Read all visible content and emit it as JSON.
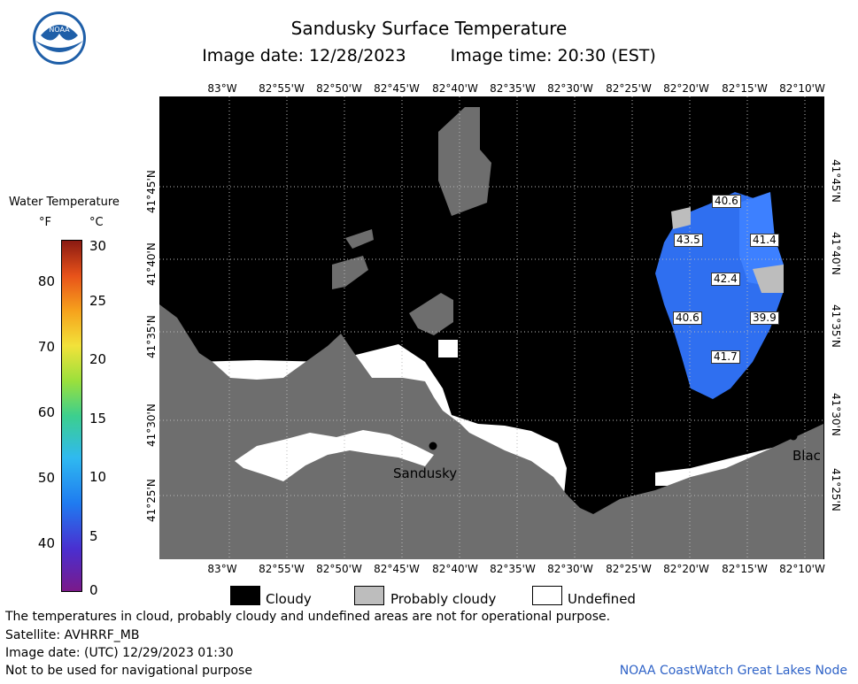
{
  "header": {
    "title": "Sandusky Surface Temperature",
    "image_date": "Image date: 12/28/2023",
    "image_time": "Image time: 20:30 (EST)"
  },
  "logo": {
    "text": "NOAA",
    "icon": "noaa-logo-icon"
  },
  "map": {
    "lon_labels": [
      "83°W",
      "82°55'W",
      "82°50'W",
      "82°45'W",
      "82°40'W",
      "82°35'W",
      "82°30'W",
      "82°25'W",
      "82°20'W",
      "82°15'W",
      "82°10'W"
    ],
    "lat_labels": [
      "41°45'N",
      "41°40'N",
      "41°35'N",
      "41°30'N",
      "41°25'N"
    ],
    "city_label": "Sandusky",
    "partial_label": "Blac",
    "temperature_labels": [
      "40.6",
      "43.5",
      "41.4",
      "42.4",
      "40.6",
      "39.9",
      "41.7"
    ],
    "colors": {
      "land": "#6e6e6e",
      "cloudy": "#000000",
      "probably_cloudy": "#bdbdbd",
      "undefined": "#ffffff",
      "water": "#2f6ff0"
    }
  },
  "legend": {
    "title": "Water Temperature",
    "unit_f": "°F",
    "unit_c": "°C",
    "f_ticks": [
      "80",
      "70",
      "60",
      "50",
      "40"
    ],
    "c_ticks": [
      "30",
      "25",
      "20",
      "15",
      "10",
      "5",
      "0"
    ]
  },
  "key": {
    "cloudy": "Cloudy",
    "probably_cloudy": "Probably cloudy",
    "undefined": "Undefined"
  },
  "footer": {
    "note": "The temperatures in cloud, probably cloudy and undefined areas are not for operational purpose.",
    "satellite": "Satellite: AVHRRF_MB",
    "utc_date": "Image date: (UTC) 12/29/2023  01:30",
    "navigation": "Not to be used for navigational purpose",
    "credit": "NOAA CoastWatch Great Lakes Node"
  }
}
